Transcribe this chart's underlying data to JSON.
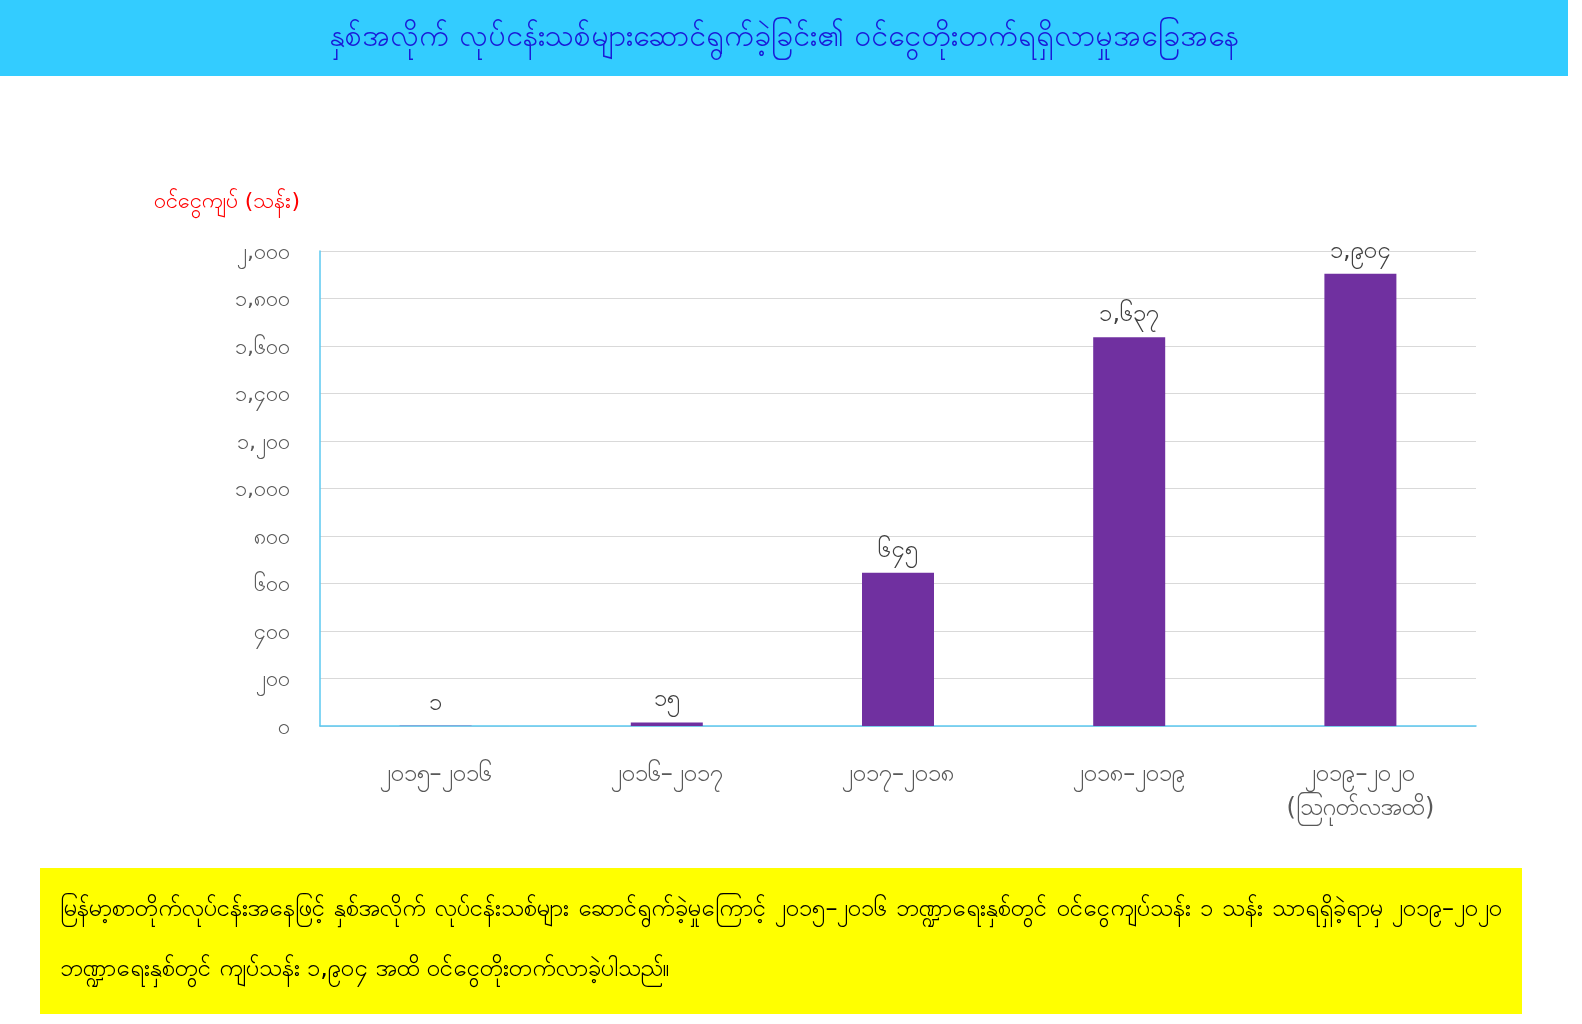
{
  "chart_data": {
    "type": "bar",
    "title": "နှစ်အလိုက် လုပ်ငန်းသစ်များဆောင်ရွက်ခဲ့ခြင်း၏ ဝင်ငွေတိုးတက်ရရှိလာမှုအခြေအနေ",
    "ylabel": "ဝင်ငွေကျပ် (သန်း)",
    "categories": [
      "၂၀၁၅–၂၀၁၆",
      "၂၀၁၆–၂၀၁၇",
      "၂၀၁၇–၂၀၁၈",
      "၂၀၁၈–၂၀၁၉",
      "၂၀၁၉–၂၀၂၀\n(ဩဂုတ်လအထိ)"
    ],
    "values": [
      1,
      15,
      645,
      1637,
      1904
    ],
    "value_labels": [
      "၁",
      "၁၅",
      "၆၄၅",
      "၁,၆၃၇",
      "၁,၉၀၄"
    ],
    "color": "#7030a0",
    "ylim": [
      0,
      2000
    ],
    "yticks": [
      {
        "value": 0,
        "label": "၀"
      },
      {
        "value": 200,
        "label": "၂၀၀"
      },
      {
        "value": 400,
        "label": "၄၀၀"
      },
      {
        "value": 600,
        "label": "၆၀၀"
      },
      {
        "value": 800,
        "label": "၈၀၀"
      },
      {
        "value": 1000,
        "label": "၁,၀၀၀"
      },
      {
        "value": 1200,
        "label": "၁,၂၀၀"
      },
      {
        "value": 1400,
        "label": "၁,၄၀၀"
      },
      {
        "value": 1600,
        "label": "၁,၆၀၀"
      },
      {
        "value": 1800,
        "label": "၁,၈၀၀"
      },
      {
        "value": 2000,
        "label": "၂,၀၀၀"
      }
    ],
    "grid": "y",
    "annotations": [
      "မြန်မာ့စာတိုက်လုပ်ငန်းအနေဖြင့် နှစ်အလိုက် လုပ်ငန်းသစ်များ ဆောင်ရွက်ခဲ့မှုကြောင့် ၂၀၁၅–၂၀၁၆ ဘဏ္ဍာရေးနှစ်တွင် ဝင်ငွေကျပ်သန်း ၁ သန်း သာရရှိခဲ့ရာမှ ၂၀၁၉–၂၀၂၀ ဘဏ္ဍာရေးနှစ်တွင် ကျပ်သန်း ၁,၉၀၄ အထိ ဝင်ငွေတိုးတက်လာခဲ့ပါသည်။"
    ]
  }
}
